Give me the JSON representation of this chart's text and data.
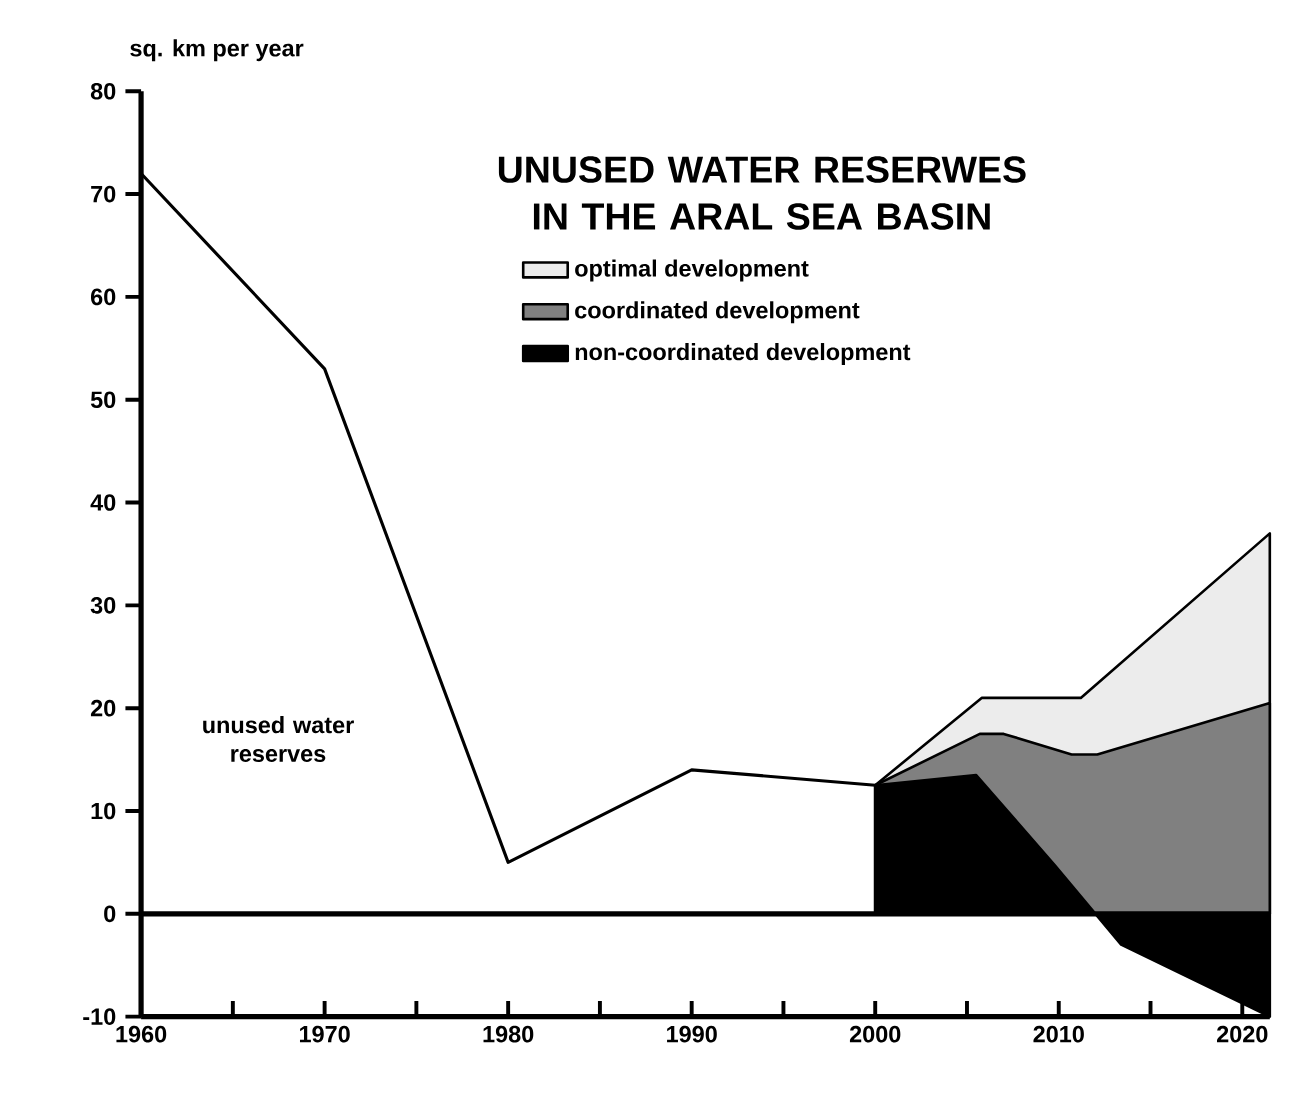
{
  "chart_data": {
    "type": "area",
    "title": "UNUSED WATER RESERWES\nIN THE ARAL SEA BASIN",
    "ylabel": "sq. km per year",
    "xlim": [
      1960,
      2021.5
    ],
    "ylim": [
      -10,
      80
    ],
    "xticks": [
      1960,
      {
        "value": 1965,
        "label": null
      },
      1970,
      {
        "value": 1975,
        "label": null
      },
      1980,
      {
        "value": 1985,
        "label": null
      },
      1990,
      {
        "value": 1995,
        "label": null
      },
      2000,
      {
        "value": 2005,
        "label": null
      },
      2010,
      {
        "value": 2015,
        "label": null
      },
      2020
    ],
    "yticks": [
      -10,
      0,
      10,
      20,
      30,
      40,
      50,
      60,
      70,
      80
    ],
    "legend": "top",
    "annotations": [
      "unused water reserves"
    ],
    "ref_lines": [
      {
        "axis": "y",
        "value": 0
      }
    ],
    "series": [
      {
        "type": "line",
        "color": "#000000",
        "x": [
          1960,
          1970,
          1980,
          1990,
          2000
        ],
        "values": [
          72,
          53,
          5,
          14,
          12.5
        ]
      },
      {
        "name": "optimal development",
        "color": "#ececec",
        "x": [
          2000,
          2005.8,
          2011.2,
          2021.5
        ],
        "values": [
          12.5,
          21,
          21,
          37
        ]
      },
      {
        "name": "coordinated development",
        "color": "#808080",
        "x": [
          2000,
          2005.7,
          2007,
          2010.7,
          2012.1,
          2021.5
        ],
        "values": [
          12.5,
          17.5,
          17.5,
          15.5,
          15.5,
          20.5
        ]
      },
      {
        "name": "non-coordinated development",
        "color": "#000000",
        "x": [
          2000,
          2005.5,
          2009.8,
          2012,
          2013.4,
          2021.5
        ],
        "values": [
          12.5,
          13.5,
          4.7,
          0,
          -3,
          -10
        ]
      }
    ]
  }
}
